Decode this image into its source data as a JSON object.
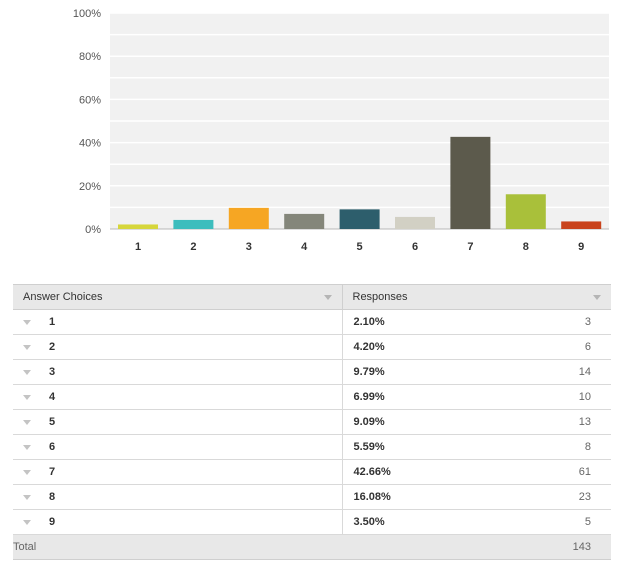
{
  "chart_data": {
    "type": "bar",
    "categories": [
      "1",
      "2",
      "3",
      "4",
      "5",
      "6",
      "7",
      "8",
      "9"
    ],
    "values": [
      2.1,
      4.2,
      9.79,
      6.99,
      9.09,
      5.59,
      42.66,
      16.08,
      3.5
    ],
    "colors": [
      "#d6d63b",
      "#3dbdbd",
      "#f6a623",
      "#84867a",
      "#2d5e6c",
      "#d2d0c4",
      "#5c5a4c",
      "#a9c03a",
      "#c9431c"
    ],
    "y_ticks": [
      "0%",
      "20%",
      "40%",
      "60%",
      "80%",
      "100%"
    ],
    "ylim": [
      0,
      100
    ],
    "grid": true,
    "plot_background": "#f1f1f1"
  },
  "table": {
    "headers": {
      "choices": "Answer Choices",
      "responses": "Responses"
    },
    "rows": [
      {
        "choice": "1",
        "percent": "2.10%",
        "count": "3"
      },
      {
        "choice": "2",
        "percent": "4.20%",
        "count": "6"
      },
      {
        "choice": "3",
        "percent": "9.79%",
        "count": "14"
      },
      {
        "choice": "4",
        "percent": "6.99%",
        "count": "10"
      },
      {
        "choice": "5",
        "percent": "9.09%",
        "count": "13"
      },
      {
        "choice": "6",
        "percent": "5.59%",
        "count": "8"
      },
      {
        "choice": "7",
        "percent": "42.66%",
        "count": "61"
      },
      {
        "choice": "8",
        "percent": "16.08%",
        "count": "23"
      },
      {
        "choice": "9",
        "percent": "3.50%",
        "count": "5"
      }
    ],
    "total_label": "Total",
    "total_count": "143"
  }
}
